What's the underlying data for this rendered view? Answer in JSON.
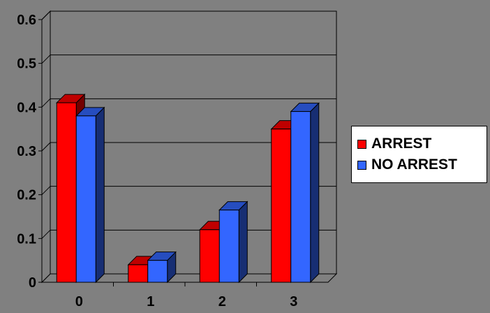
{
  "chart_data": {
    "type": "bar",
    "categories": [
      "0",
      "1",
      "2",
      "3"
    ],
    "series": [
      {
        "name": "ARREST",
        "values": [
          0.41,
          0.04,
          0.12,
          0.35
        ],
        "color": "#ff0000"
      },
      {
        "name": "NO ARREST",
        "values": [
          0.38,
          0.05,
          0.165,
          0.39
        ],
        "color": "#3366ff"
      }
    ],
    "yticks": [
      "0",
      "0.1",
      "0.2",
      "0.3",
      "0.4",
      "0.5",
      "0.6"
    ],
    "ylim": [
      0,
      0.6
    ],
    "grid": true,
    "legend_position": "right",
    "title": "",
    "xlabel": "",
    "ylabel": ""
  }
}
